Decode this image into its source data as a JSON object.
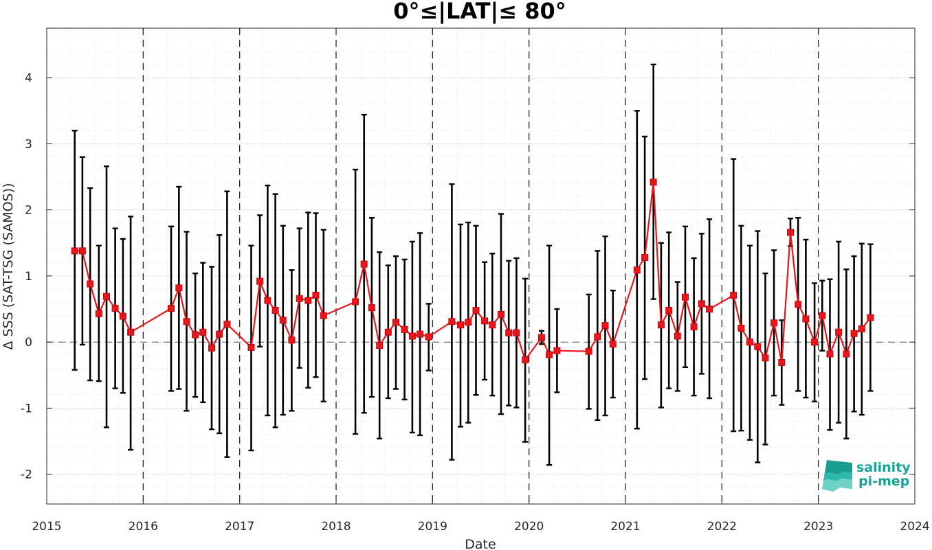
{
  "chart_data": {
    "type": "line",
    "title": "0°≤|LAT|≤ 80°",
    "xlabel": "Date",
    "ylabel": "Δ SSS (SAT-TSG (SAMOS))",
    "xlim": [
      2015.0,
      2024.0
    ],
    "ylim": [
      -2.45,
      4.75
    ],
    "x_ticks": [
      2015,
      2016,
      2017,
      2018,
      2019,
      2020,
      2021,
      2022,
      2023,
      2024
    ],
    "x_tick_labels": [
      "2015",
      "2016",
      "2017",
      "2018",
      "2019",
      "2020",
      "2021",
      "2022",
      "2023",
      "2024"
    ],
    "y_ticks": [
      -2,
      -1,
      0,
      1,
      2,
      3,
      4
    ],
    "y_tick_labels": [
      "-2",
      "-1",
      "0",
      "1",
      "2",
      "3",
      "4"
    ],
    "year_boundary_lines": [
      2016,
      2017,
      2018,
      2019,
      2020,
      2021,
      2022,
      2023
    ],
    "zero_line": 0,
    "grid": true,
    "minor_grid": true,
    "colors": {
      "series": "#e8161b",
      "error_bars": "#000000",
      "grid": "#d9d9d9",
      "axis": "#262626"
    },
    "series": [
      {
        "points": [
          {
            "x": 2015.29,
            "y": 1.38,
            "lo": -0.42,
            "hi": 3.2
          },
          {
            "x": 2015.37,
            "y": 1.38,
            "lo": -0.04,
            "hi": 2.8
          },
          {
            "x": 2015.45,
            "y": 0.88,
            "lo": -0.58,
            "hi": 2.33
          },
          {
            "x": 2015.54,
            "y": 0.43,
            "lo": -0.59,
            "hi": 1.46
          },
          {
            "x": 2015.62,
            "y": 0.69,
            "lo": -1.29,
            "hi": 2.66
          },
          {
            "x": 2015.71,
            "y": 0.51,
            "lo": -0.7,
            "hi": 1.72
          },
          {
            "x": 2015.79,
            "y": 0.39,
            "lo": -0.77,
            "hi": 1.56
          },
          {
            "x": 2015.87,
            "y": 0.15,
            "lo": -1.63,
            "hi": 1.9
          },
          {
            "x": 2016.29,
            "y": 0.51,
            "lo": -0.74,
            "hi": 1.75
          },
          {
            "x": 2016.37,
            "y": 0.82,
            "lo": -0.71,
            "hi": 2.35
          },
          {
            "x": 2016.45,
            "y": 0.31,
            "lo": -1.04,
            "hi": 1.67
          },
          {
            "x": 2016.54,
            "y": 0.11,
            "lo": -0.83,
            "hi": 1.04
          },
          {
            "x": 2016.62,
            "y": 0.15,
            "lo": -0.91,
            "hi": 1.2
          },
          {
            "x": 2016.71,
            "y": -0.09,
            "lo": -1.32,
            "hi": 1.14
          },
          {
            "x": 2016.79,
            "y": 0.12,
            "lo": -1.38,
            "hi": 1.62
          },
          {
            "x": 2016.87,
            "y": 0.27,
            "lo": -1.74,
            "hi": 2.28
          },
          {
            "x": 2017.12,
            "y": -0.08,
            "lo": -1.64,
            "hi": 1.46
          },
          {
            "x": 2017.21,
            "y": 0.92,
            "lo": -0.07,
            "hi": 1.92
          },
          {
            "x": 2017.29,
            "y": 0.63,
            "lo": -1.11,
            "hi": 2.37
          },
          {
            "x": 2017.37,
            "y": 0.48,
            "lo": -1.29,
            "hi": 2.24
          },
          {
            "x": 2017.45,
            "y": 0.33,
            "lo": -1.1,
            "hi": 1.76
          },
          {
            "x": 2017.54,
            "y": 0.03,
            "lo": -1.04,
            "hi": 1.09
          },
          {
            "x": 2017.62,
            "y": 0.66,
            "lo": -0.39,
            "hi": 1.72
          },
          {
            "x": 2017.71,
            "y": 0.63,
            "lo": -0.69,
            "hi": 1.96
          },
          {
            "x": 2017.79,
            "y": 0.71,
            "lo": -0.53,
            "hi": 1.95
          },
          {
            "x": 2017.87,
            "y": 0.4,
            "lo": -0.9,
            "hi": 1.7
          },
          {
            "x": 2018.2,
            "y": 0.61,
            "lo": -1.39,
            "hi": 2.61
          },
          {
            "x": 2018.29,
            "y": 1.18,
            "lo": -1.07,
            "hi": 3.44
          },
          {
            "x": 2018.37,
            "y": 0.52,
            "lo": -0.83,
            "hi": 1.88
          },
          {
            "x": 2018.45,
            "y": -0.05,
            "lo": -1.46,
            "hi": 1.36
          },
          {
            "x": 2018.54,
            "y": 0.15,
            "lo": -0.85,
            "hi": 1.16
          },
          {
            "x": 2018.62,
            "y": 0.3,
            "lo": -0.71,
            "hi": 1.3
          },
          {
            "x": 2018.71,
            "y": 0.19,
            "lo": -0.87,
            "hi": 1.25
          },
          {
            "x": 2018.79,
            "y": 0.09,
            "lo": -1.37,
            "hi": 1.52
          },
          {
            "x": 2018.87,
            "y": 0.12,
            "lo": -1.41,
            "hi": 1.65
          },
          {
            "x": 2018.96,
            "y": 0.08,
            "lo": -0.43,
            "hi": 0.58
          },
          {
            "x": 2019.2,
            "y": 0.31,
            "lo": -1.78,
            "hi": 2.39
          },
          {
            "x": 2019.29,
            "y": 0.26,
            "lo": -1.28,
            "hi": 1.78
          },
          {
            "x": 2019.37,
            "y": 0.3,
            "lo": -1.22,
            "hi": 1.81
          },
          {
            "x": 2019.45,
            "y": 0.48,
            "lo": -0.8,
            "hi": 1.76
          },
          {
            "x": 2019.54,
            "y": 0.32,
            "lo": -0.57,
            "hi": 1.21
          },
          {
            "x": 2019.62,
            "y": 0.26,
            "lo": -0.81,
            "hi": 1.34
          },
          {
            "x": 2019.71,
            "y": 0.42,
            "lo": -1.09,
            "hi": 1.94
          },
          {
            "x": 2019.79,
            "y": 0.14,
            "lo": -0.96,
            "hi": 1.23
          },
          {
            "x": 2019.87,
            "y": 0.14,
            "lo": -0.99,
            "hi": 1.27
          },
          {
            "x": 2019.96,
            "y": -0.27,
            "lo": -1.51,
            "hi": 0.96
          },
          {
            "x": 2020.13,
            "y": 0.07,
            "lo": -0.03,
            "hi": 0.17
          },
          {
            "x": 2020.21,
            "y": -0.19,
            "lo": -1.86,
            "hi": 1.46
          },
          {
            "x": 2020.29,
            "y": -0.13,
            "lo": -0.76,
            "hi": 0.5
          },
          {
            "x": 2020.62,
            "y": -0.14,
            "lo": -1.01,
            "hi": 0.72
          },
          {
            "x": 2020.71,
            "y": 0.08,
            "lo": -1.18,
            "hi": 1.38
          },
          {
            "x": 2020.79,
            "y": 0.25,
            "lo": -1.11,
            "hi": 1.6
          },
          {
            "x": 2020.87,
            "y": -0.03,
            "lo": -0.84,
            "hi": 0.78
          },
          {
            "x": 2021.12,
            "y": 1.09,
            "lo": -1.31,
            "hi": 3.5
          },
          {
            "x": 2021.2,
            "y": 1.28,
            "lo": -0.56,
            "hi": 3.11
          },
          {
            "x": 2021.29,
            "y": 2.42,
            "lo": 0.65,
            "hi": 4.2
          },
          {
            "x": 2021.37,
            "y": 0.26,
            "lo": -0.99,
            "hi": 1.5
          },
          {
            "x": 2021.45,
            "y": 0.48,
            "lo": -0.7,
            "hi": 1.66
          },
          {
            "x": 2021.54,
            "y": 0.09,
            "lo": -0.74,
            "hi": 0.91
          },
          {
            "x": 2021.62,
            "y": 0.68,
            "lo": -0.38,
            "hi": 1.75
          },
          {
            "x": 2021.71,
            "y": 0.23,
            "lo": -0.81,
            "hi": 1.27
          },
          {
            "x": 2021.79,
            "y": 0.58,
            "lo": -0.48,
            "hi": 1.64
          },
          {
            "x": 2021.87,
            "y": 0.5,
            "lo": -0.85,
            "hi": 1.86
          },
          {
            "x": 2022.12,
            "y": 0.71,
            "lo": -1.35,
            "hi": 2.77
          },
          {
            "x": 2022.2,
            "y": 0.21,
            "lo": -1.34,
            "hi": 1.76
          },
          {
            "x": 2022.29,
            "y": 0.0,
            "lo": -1.48,
            "hi": 1.46
          },
          {
            "x": 2022.37,
            "y": -0.07,
            "lo": -1.82,
            "hi": 1.68
          },
          {
            "x": 2022.45,
            "y": -0.24,
            "lo": -1.55,
            "hi": 1.04
          },
          {
            "x": 2022.54,
            "y": 0.29,
            "lo": -0.81,
            "hi": 1.39
          },
          {
            "x": 2022.62,
            "y": -0.31,
            "lo": -0.95,
            "hi": 0.33
          },
          {
            "x": 2022.71,
            "y": 1.66,
            "lo": 1.45,
            "hi": 1.87
          },
          {
            "x": 2022.79,
            "y": 0.57,
            "lo": -0.74,
            "hi": 1.88
          },
          {
            "x": 2022.87,
            "y": 0.35,
            "lo": -0.84,
            "hi": 1.55
          },
          {
            "x": 2022.96,
            "y": 0.0,
            "lo": -0.9,
            "hi": 0.89
          },
          {
            "x": 2023.04,
            "y": 0.4,
            "lo": -0.13,
            "hi": 0.93
          },
          {
            "x": 2023.12,
            "y": -0.18,
            "lo": -1.33,
            "hi": 0.95
          },
          {
            "x": 2023.21,
            "y": 0.15,
            "lo": -1.22,
            "hi": 1.52
          },
          {
            "x": 2023.29,
            "y": -0.18,
            "lo": -1.46,
            "hi": 1.1
          },
          {
            "x": 2023.37,
            "y": 0.13,
            "lo": -1.05,
            "hi": 1.3
          },
          {
            "x": 2023.45,
            "y": 0.2,
            "lo": -1.1,
            "hi": 1.49
          },
          {
            "x": 2023.54,
            "y": 0.37,
            "lo": -0.74,
            "hi": 1.48
          }
        ]
      }
    ]
  },
  "logo": {
    "line1": "salinity",
    "line2": "pi-mep",
    "color": "#17a59a"
  }
}
